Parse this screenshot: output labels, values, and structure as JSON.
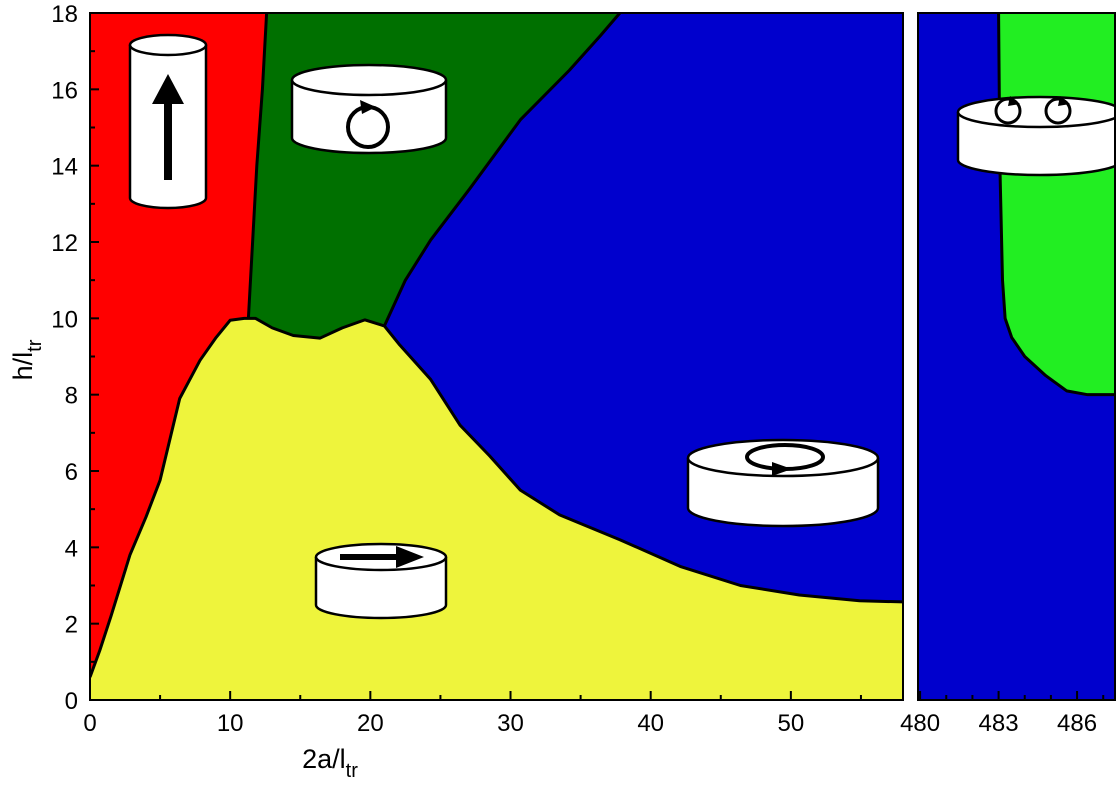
{
  "chart_data": [
    {
      "type": "phase",
      "xlabel": "2a/l",
      "xlabel_subscript": "tr",
      "ylabel": "h/l",
      "ylabel_subscript": "tr",
      "xlim": [
        0,
        58
      ],
      "ylim": [
        0,
        18
      ],
      "xticks": [
        0,
        10,
        20,
        30,
        40,
        50
      ],
      "xticks_minor": [
        5,
        15,
        25,
        35,
        45,
        55
      ],
      "yticks": [
        0,
        2,
        4,
        6,
        8,
        10,
        12,
        14,
        16,
        18
      ],
      "yticks_minor": [
        1,
        3,
        5,
        7,
        9,
        11,
        13,
        15,
        17
      ],
      "background": "#0000cd",
      "series": [
        {
          "fill": "left",
          "color": "#007000",
          "x": [
            21,
            22.5,
            24.3,
            27.1,
            30.7,
            34.2,
            36.4,
            37.8
          ],
          "values": [
            9.8,
            11,
            12.05,
            13.4,
            15.2,
            16.5,
            17.4,
            18
          ]
        },
        {
          "fill": "left",
          "color": "#ff0000",
          "x": [
            11.3,
            11.6,
            11.9,
            12.3,
            12.6
          ],
          "values": [
            10,
            12,
            14,
            16,
            18
          ]
        },
        {
          "fill": "below",
          "color": "#eef43c",
          "x": [
            0,
            0.7,
            1.5,
            2.85,
            4,
            5,
            6.4,
            7.85,
            9,
            10,
            11,
            11.8,
            13,
            14.5,
            16.4,
            18,
            19.6,
            21,
            22.1,
            24.3,
            26.4,
            28.5,
            30.7,
            33.5,
            37.8,
            42.1,
            46.4,
            50.6,
            54.9,
            58
          ],
          "values": [
            0.6,
            1.3,
            2.2,
            3.8,
            4.8,
            5.76,
            7.9,
            8.9,
            9.5,
            9.95,
            10.0,
            10.0,
            9.75,
            9.55,
            9.48,
            9.75,
            9.96,
            9.8,
            9.3,
            8.4,
            7.2,
            6.4,
            5.5,
            4.85,
            4.2,
            3.5,
            3.0,
            2.75,
            2.6,
            2.57
          ]
        }
      ]
    },
    {
      "type": "phase",
      "xlim": [
        479.92,
        487.45
      ],
      "ylim": [
        0,
        18
      ],
      "xticks": [
        480,
        483,
        486
      ],
      "xticks_minor": [
        481,
        482,
        484,
        485,
        487
      ],
      "background": "#0000cd",
      "series": [
        {
          "fill": "right",
          "color": "#22ee22",
          "x": [
            483.0,
            483.05,
            483.15,
            483.25,
            483.5,
            484.0,
            484.8,
            485.6,
            486.4,
            487.45
          ],
          "values": [
            18,
            14,
            11,
            10,
            9.5,
            9.0,
            8.5,
            8.1,
            8.0,
            8.0
          ]
        }
      ]
    }
  ]
}
